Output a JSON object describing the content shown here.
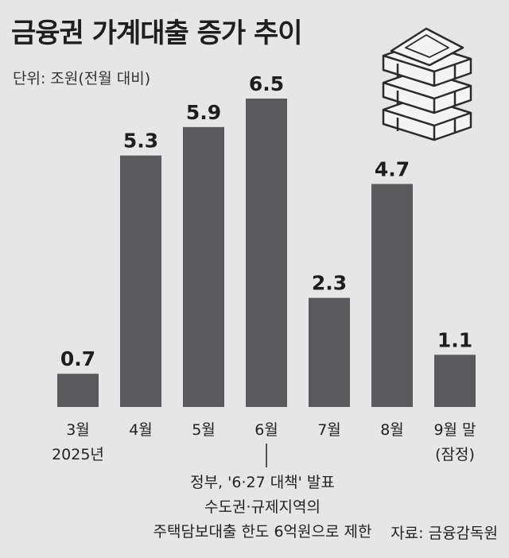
{
  "chart_data": {
    "type": "bar",
    "title": "금융권 가계대출 증가 추이",
    "unit_label": "단위: 조원(전월 대비)",
    "categories": [
      "3월",
      "4월",
      "5월",
      "6월",
      "7월",
      "8월",
      "9월 말"
    ],
    "category_sublabels": [
      "2025년",
      "",
      "",
      "",
      "",
      "",
      "(잠정)"
    ],
    "values": [
      0.7,
      5.3,
      5.9,
      6.5,
      2.3,
      4.7,
      1.1
    ],
    "data_labels": [
      "0.7",
      "5.3",
      "5.9",
      "6.5",
      "2.3",
      "4.7",
      "1.1"
    ],
    "ylim": [
      0,
      6.5
    ],
    "bar_color": "#5a5a5c",
    "annotation": {
      "category": "6월",
      "lines": [
        "정부, '6·27 대책' 발표",
        "수도권·규제지역의",
        "주택담보대출 한도 6억원으로 제한"
      ]
    },
    "source": "자료: 금융감독원"
  },
  "colors": {
    "background": "#e6e6e6",
    "bar": "#5a5a5c",
    "text": "#222222"
  },
  "icon": "money-stack-icon"
}
